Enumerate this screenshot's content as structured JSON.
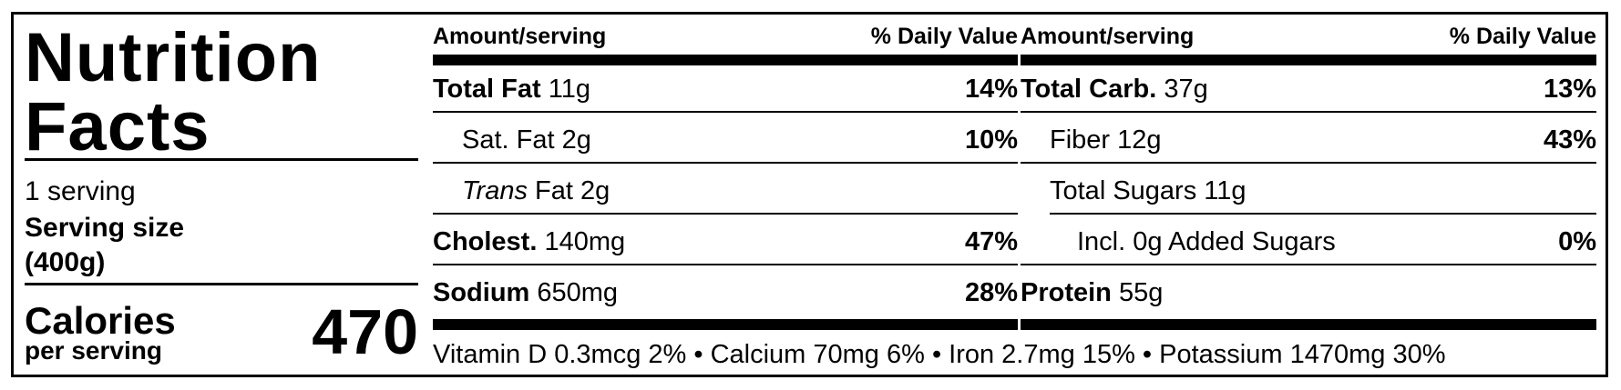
{
  "title_line1": "Nutrition",
  "title_line2": "Facts",
  "servings": "1 serving",
  "serving_size_label": "Serving size",
  "serving_size_value": "(400g)",
  "calories_label": "Calories",
  "calories_sub": "per serving",
  "calories_value": "470",
  "header": {
    "amount": "Amount/serving",
    "dv": "% Daily Value"
  },
  "left_rows": [
    {
      "name": "Total Fat",
      "amount": "11g",
      "dv": "14%"
    },
    {
      "name": "Sat. Fat",
      "amount": "2g",
      "dv": "10%"
    },
    {
      "name": "Trans",
      "name_rest": "Fat",
      "amount": "2g",
      "dv": ""
    },
    {
      "name": "Cholest.",
      "amount": "140mg",
      "dv": "47%"
    },
    {
      "name": "Sodium",
      "amount": "650mg",
      "dv": "28%"
    }
  ],
  "right_rows": [
    {
      "name": "Total Carb.",
      "amount": "37g",
      "dv": "13%"
    },
    {
      "name": "Fiber",
      "amount": "12g",
      "dv": "43%"
    },
    {
      "name": "Total Sugars",
      "amount": "11g",
      "dv": ""
    },
    {
      "name": "Incl. 0g Added Sugars",
      "amount": "",
      "dv": "0%"
    },
    {
      "name": "Protein",
      "amount": "55g",
      "dv": ""
    }
  ],
  "vitamins": "Vitamin D 0.3mcg 2% • Calcium 70mg 6% • Iron 2.7mg 15% • Potassium 1470mg 30%"
}
